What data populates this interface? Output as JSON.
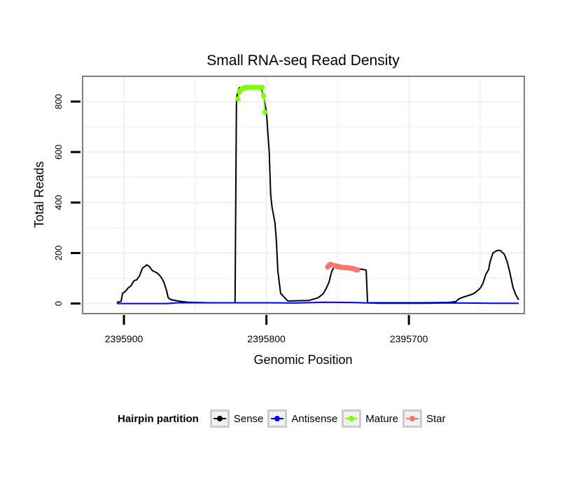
{
  "chart_data": {
    "type": "line",
    "title": "Small RNA-seq Read Density",
    "xlabel": "Genomic Position",
    "ylabel": "Total Reads",
    "x_reversed": true,
    "xlim": [
      2395619,
      2395929
    ],
    "ylim": [
      -40,
      900
    ],
    "x_ticks": [
      2395900,
      2395800,
      2395700
    ],
    "x_tick_labels": [
      "2395900",
      "2395800",
      "2395700"
    ],
    "y_ticks": [
      0,
      200,
      400,
      600,
      800
    ],
    "y_tick_labels": [
      "0",
      "200",
      "400",
      "600",
      "800"
    ],
    "grid": true,
    "legend_position": "bottom",
    "legend_title": "Hairpin partition",
    "series": [
      {
        "name": "Sense",
        "color": "#000000",
        "x": [
          2395905,
          2395902,
          2395901,
          2395899,
          2395897,
          2395895,
          2395893,
          2395891,
          2395889,
          2395887,
          2395885,
          2395884,
          2395883,
          2395882,
          2395880,
          2395878,
          2395876,
          2395874,
          2395872,
          2395870,
          2395869,
          2395868,
          2395866,
          2395862,
          2395858,
          2395855,
          2395840,
          2395822,
          2395821,
          2395820,
          2395819,
          2395805,
          2395803,
          2395802,
          2395800,
          2395798,
          2395797,
          2395796,
          2395794,
          2395793,
          2395792,
          2395790,
          2395785,
          2395770,
          2395764,
          2395762,
          2395760,
          2395758,
          2395756,
          2395755,
          2395754,
          2395752,
          2395750,
          2395749,
          2395748,
          2395747,
          2395746,
          2395744,
          2395740,
          2395732,
          2395730,
          2395729,
          2395728,
          2395700,
          2395690,
          2395672,
          2395667,
          2395665,
          2395662,
          2395658,
          2395655,
          2395653,
          2395650,
          2395648,
          2395646,
          2395644,
          2395643,
          2395641,
          2395638,
          2395636,
          2395633,
          2395631,
          2395629,
          2395627,
          2395625,
          2395623
        ],
        "y": [
          5,
          8,
          40,
          48,
          62,
          70,
          90,
          94,
          110,
          140,
          148,
          153,
          150,
          145,
          130,
          125,
          118,
          105,
          85,
          50,
          25,
          18,
          14,
          10,
          7,
          5,
          3,
          3,
          810,
          842,
          855,
          855,
          843,
          820,
          760,
          600,
          430,
          380,
          320,
          250,
          130,
          40,
          10,
          12,
          22,
          30,
          40,
          60,
          85,
          110,
          130,
          145,
          155,
          152,
          150,
          148,
          145,
          143,
          140,
          135,
          132,
          3,
          3,
          3,
          3,
          4,
          8,
          18,
          25,
          32,
          38,
          45,
          60,
          80,
          115,
          135,
          165,
          200,
          210,
          210,
          195,
          165,
          120,
          65,
          35,
          15
        ]
      },
      {
        "name": "Antisense",
        "color": "#0000ff",
        "x": [
          2395905,
          2395870,
          2395862,
          2395800,
          2395780,
          2395760,
          2395740,
          2395720,
          2395690,
          2395675,
          2395660,
          2395640,
          2395623
        ],
        "y": [
          0,
          0,
          3,
          3,
          2,
          5,
          4,
          1,
          1,
          2,
          2,
          1,
          1
        ]
      },
      {
        "name": "Mature",
        "color": "#7fff00",
        "x": [
          2395820,
          2395819,
          2395818,
          2395817,
          2395816,
          2395815,
          2395814,
          2395813,
          2395812,
          2395811,
          2395810,
          2395809,
          2395808,
          2395807,
          2395806,
          2395805,
          2395804,
          2395803,
          2395802,
          2395801
        ],
        "y": [
          810,
          838,
          845,
          850,
          853,
          855,
          856,
          856,
          856,
          856,
          856,
          856,
          856,
          856,
          856,
          856,
          856,
          856,
          822,
          757
        ]
      },
      {
        "name": "Star",
        "color": "#f8766d",
        "x": [
          2395757,
          2395756,
          2395755,
          2395754,
          2395753,
          2395752,
          2395751,
          2395750,
          2395749,
          2395748,
          2395747,
          2395746,
          2395745,
          2395744,
          2395743,
          2395742,
          2395741,
          2395740,
          2395739,
          2395738,
          2395737,
          2395736
        ],
        "y": [
          145,
          152,
          155,
          153,
          150,
          149,
          148,
          146,
          145,
          144,
          143,
          143,
          142,
          142,
          141,
          141,
          140,
          139,
          138,
          136,
          134,
          133
        ]
      }
    ]
  }
}
